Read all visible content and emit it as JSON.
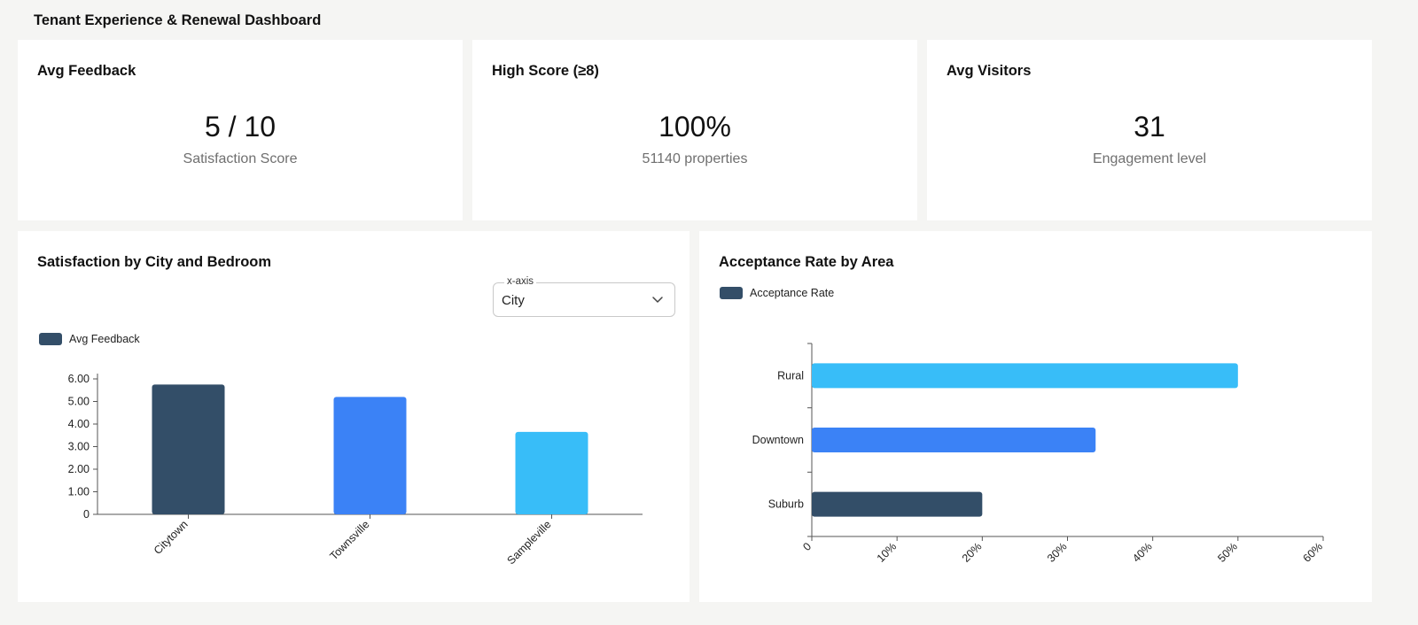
{
  "page": {
    "title": "Tenant Experience & Renewal Dashboard"
  },
  "kpis": [
    {
      "title": "Avg Feedback",
      "value": "5 / 10",
      "subtitle": "Satisfaction Score"
    },
    {
      "title": "High Score (≥8)",
      "value": "100%",
      "subtitle": "51140 properties"
    },
    {
      "title": "Avg Visitors",
      "value": "31",
      "subtitle": "Engagement level"
    }
  ],
  "satisfaction_panel": {
    "title": "Satisfaction by City and Bedroom",
    "xaxis_select": {
      "label": "x-axis",
      "value": "City",
      "icon": "chevron-down-icon"
    },
    "legend_label": "Avg Feedback",
    "legend_color": "#334e68"
  },
  "acceptance_panel": {
    "title": "Acceptance Rate by Area",
    "legend_label": "Acceptance Rate",
    "legend_color": "#334e68"
  },
  "chart_data": [
    {
      "type": "bar",
      "title": "Satisfaction by City and Bedroom",
      "categories": [
        "Citytown",
        "Townsville",
        "Sampleville"
      ],
      "series": [
        {
          "name": "Avg Feedback",
          "values": [
            5.75,
            5.2,
            3.65
          ]
        }
      ],
      "colors": [
        "#334e68",
        "#3b82f6",
        "#38bdf8"
      ],
      "yticks": [
        "0",
        "1.00",
        "2.00",
        "3.00",
        "4.00",
        "5.00",
        "6.00"
      ],
      "ylim": [
        0,
        6
      ],
      "legend": "top-left",
      "grid": false
    },
    {
      "type": "bar",
      "orientation": "horizontal",
      "title": "Acceptance Rate by Area",
      "categories": [
        "Rural",
        "Downtown",
        "Suburb"
      ],
      "series": [
        {
          "name": "Acceptance Rate",
          "values": [
            50,
            33.3,
            20
          ]
        }
      ],
      "colors": [
        "#38bdf8",
        "#3b82f6",
        "#334e68"
      ],
      "xticks": [
        "0",
        "10%",
        "20%",
        "30%",
        "40%",
        "50%",
        "60%"
      ],
      "xlim": [
        0,
        60
      ],
      "legend": "top-left",
      "grid": false
    }
  ]
}
